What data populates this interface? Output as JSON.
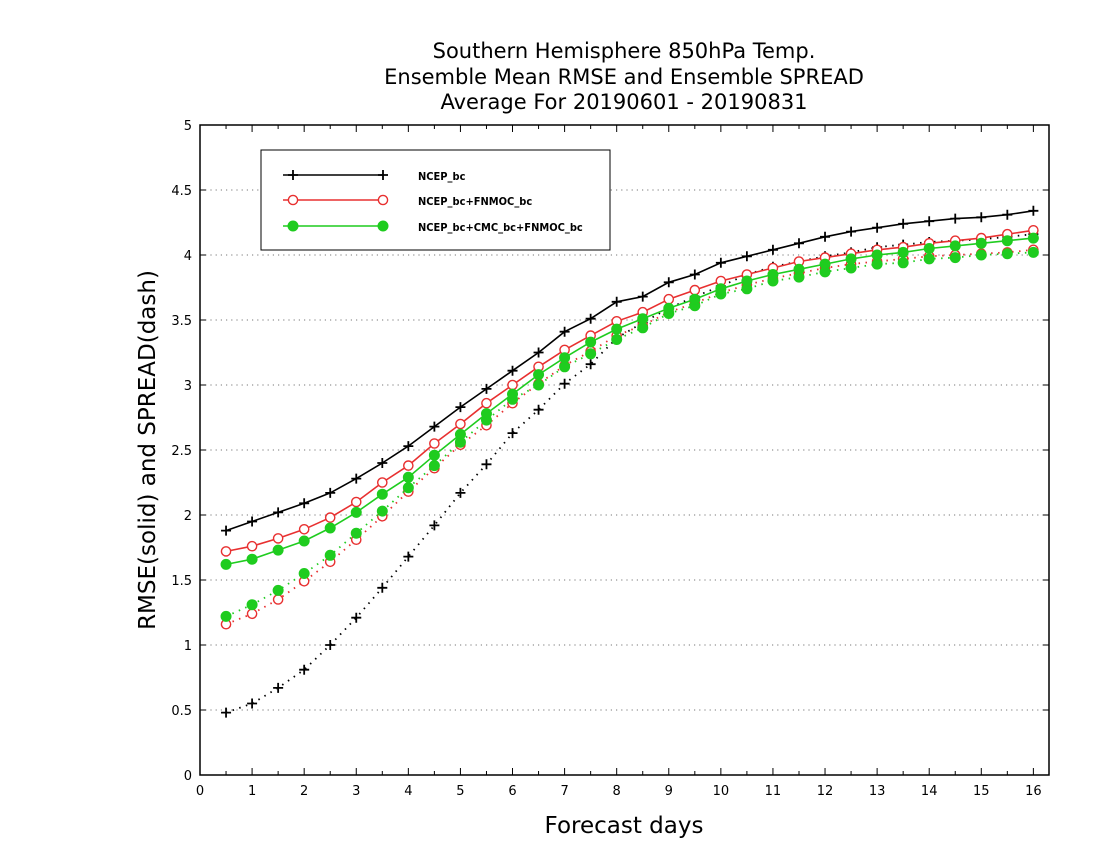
{
  "chart_data": {
    "type": "line",
    "title": [
      "Southern Hemisphere 850hPa Temp.",
      "Ensemble Mean RMSE and Ensemble SPREAD",
      "Average For 20190601 - 20190831"
    ],
    "xlabel": "Forecast days",
    "ylabel": "RMSE(solid) and SPREAD(dash)",
    "xlim": [
      0,
      16.3
    ],
    "ylim": [
      0,
      5
    ],
    "xticks": [
      0,
      1,
      2,
      3,
      4,
      5,
      6,
      7,
      8,
      9,
      10,
      11,
      12,
      13,
      14,
      15,
      16
    ],
    "yticks": [
      0,
      0.5,
      1,
      1.5,
      2,
      2.5,
      3,
      3.5,
      4,
      4.5,
      5
    ],
    "ytick_labels": [
      "0",
      "0.5",
      "1",
      "1.5",
      "2",
      "2.5",
      "3",
      "3.5",
      "4",
      "4.5",
      "5"
    ],
    "grid": "horizontal-dotted",
    "legend_position": "top-left",
    "x": [
      0.5,
      1,
      1.5,
      2,
      2.5,
      3,
      3.5,
      4,
      4.5,
      5,
      5.5,
      6,
      6.5,
      7,
      7.5,
      8,
      8.5,
      9,
      9.5,
      10,
      10.5,
      11,
      11.5,
      12,
      12.5,
      13,
      13.5,
      14,
      14.5,
      15,
      15.5,
      16
    ],
    "series": [
      {
        "name": "NCEP_bc",
        "color": "#000000",
        "marker": "plus",
        "rmse": [
          1.88,
          1.95,
          2.02,
          2.09,
          2.17,
          2.28,
          2.4,
          2.53,
          2.68,
          2.83,
          2.97,
          3.11,
          3.25,
          3.41,
          3.51,
          3.64,
          3.68,
          3.79,
          3.85,
          3.94,
          3.99,
          4.04,
          4.09,
          4.14,
          4.18,
          4.21,
          4.24,
          4.26,
          4.28,
          4.29,
          4.31,
          4.34
        ],
        "spread": [
          0.48,
          0.55,
          0.67,
          0.81,
          1.0,
          1.21,
          1.44,
          1.68,
          1.92,
          2.17,
          2.39,
          2.63,
          2.81,
          3.01,
          3.16,
          3.36,
          3.48,
          3.59,
          3.68,
          3.76,
          3.85,
          3.91,
          3.95,
          3.99,
          4.02,
          4.06,
          4.08,
          4.1,
          4.11,
          4.12,
          4.14,
          4.16
        ]
      },
      {
        "name": "NCEP_bc+FNMOC_bc",
        "color": "#e83030",
        "marker": "open-circle",
        "rmse": [
          1.72,
          1.76,
          1.82,
          1.89,
          1.98,
          2.1,
          2.25,
          2.38,
          2.55,
          2.7,
          2.86,
          3.0,
          3.14,
          3.27,
          3.38,
          3.49,
          3.56,
          3.66,
          3.73,
          3.8,
          3.85,
          3.9,
          3.95,
          3.98,
          4.01,
          4.04,
          4.06,
          4.09,
          4.11,
          4.13,
          4.16,
          4.19
        ],
        "spread": [
          1.16,
          1.24,
          1.35,
          1.49,
          1.64,
          1.81,
          1.99,
          2.18,
          2.36,
          2.54,
          2.69,
          2.86,
          3.01,
          3.15,
          3.26,
          3.38,
          3.46,
          3.56,
          3.63,
          3.71,
          3.77,
          3.82,
          3.86,
          3.9,
          3.93,
          3.95,
          3.97,
          3.99,
          4.0,
          4.01,
          4.02,
          4.04
        ]
      },
      {
        "name": "NCEP_bc+CMC_bc+FNMOC_bc",
        "color": "#1fcc1f",
        "marker": "filled-circle",
        "rmse": [
          1.62,
          1.66,
          1.73,
          1.8,
          1.9,
          2.02,
          2.16,
          2.29,
          2.46,
          2.62,
          2.78,
          2.93,
          3.08,
          3.21,
          3.33,
          3.43,
          3.51,
          3.59,
          3.66,
          3.74,
          3.8,
          3.85,
          3.89,
          3.93,
          3.97,
          4.0,
          4.02,
          4.05,
          4.07,
          4.09,
          4.11,
          4.13
        ],
        "spread": [
          1.22,
          1.31,
          1.42,
          1.55,
          1.69,
          1.86,
          2.03,
          2.21,
          2.38,
          2.56,
          2.73,
          2.89,
          3.0,
          3.14,
          3.24,
          3.35,
          3.44,
          3.55,
          3.61,
          3.7,
          3.74,
          3.8,
          3.83,
          3.87,
          3.9,
          3.93,
          3.94,
          3.97,
          3.98,
          4.0,
          4.01,
          4.02
        ]
      }
    ]
  }
}
